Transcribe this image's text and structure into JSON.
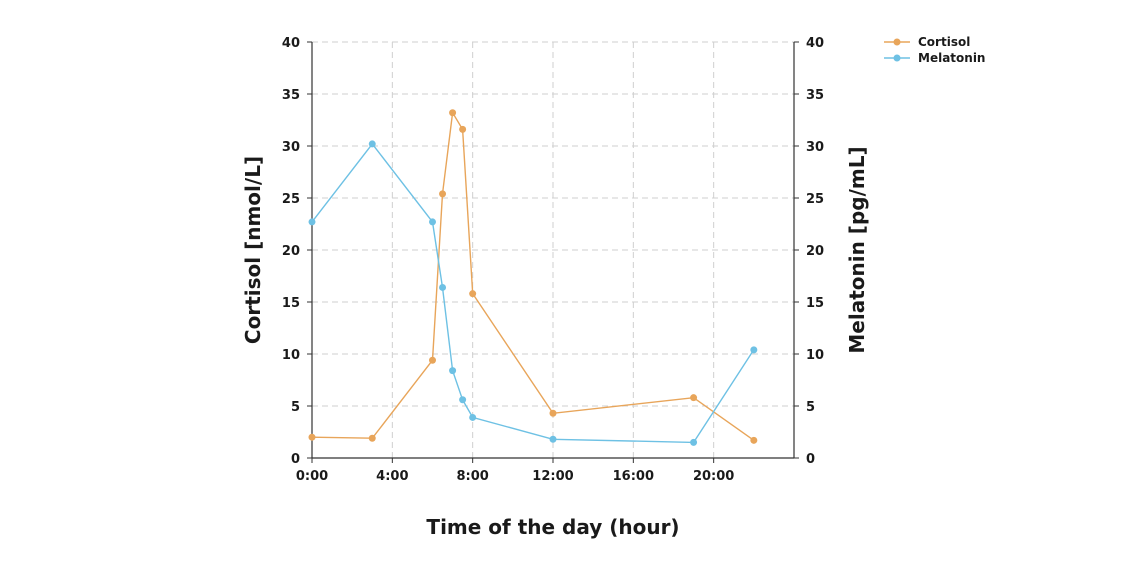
{
  "chart_data": {
    "type": "line",
    "title": "",
    "xlabel": "Time of the day (hour)",
    "ylabel_left": "Cortisol [nmol/L]",
    "ylabel_right": "Melatonin [pg/mL]",
    "xlim": [
      0,
      24
    ],
    "ylim_left": [
      0,
      40
    ],
    "ylim_right": [
      0,
      40
    ],
    "x_ticks": [
      0,
      4,
      8,
      12,
      16,
      20
    ],
    "x_tick_labels": [
      "0:00",
      "4:00",
      "8:00",
      "12:00",
      "16:00",
      "20:00"
    ],
    "y_ticks": [
      0,
      5,
      10,
      15,
      20,
      25,
      30,
      35,
      40
    ],
    "y_tick_labels": [
      "0",
      "5",
      "10",
      "15",
      "20",
      "25",
      "30",
      "35",
      "40"
    ],
    "grid": true,
    "legend_position": "top-right",
    "series": [
      {
        "name": "Cortisol",
        "color": "#E8A55A",
        "axis": "left",
        "x": [
          0,
          3,
          6,
          6.5,
          7,
          7.5,
          8,
          12,
          19,
          22
        ],
        "values": [
          2,
          1.9,
          9.4,
          25.4,
          33.2,
          31.6,
          15.8,
          4.3,
          5.8,
          1.7
        ]
      },
      {
        "name": "Melatonin",
        "color": "#6EC1E4",
        "axis": "right",
        "x": [
          0,
          3,
          6,
          6.5,
          7,
          7.5,
          8,
          12,
          19,
          22
        ],
        "values": [
          22.7,
          30.2,
          22.7,
          16.4,
          8.4,
          5.6,
          3.9,
          1.8,
          1.5,
          10.4
        ]
      }
    ]
  }
}
